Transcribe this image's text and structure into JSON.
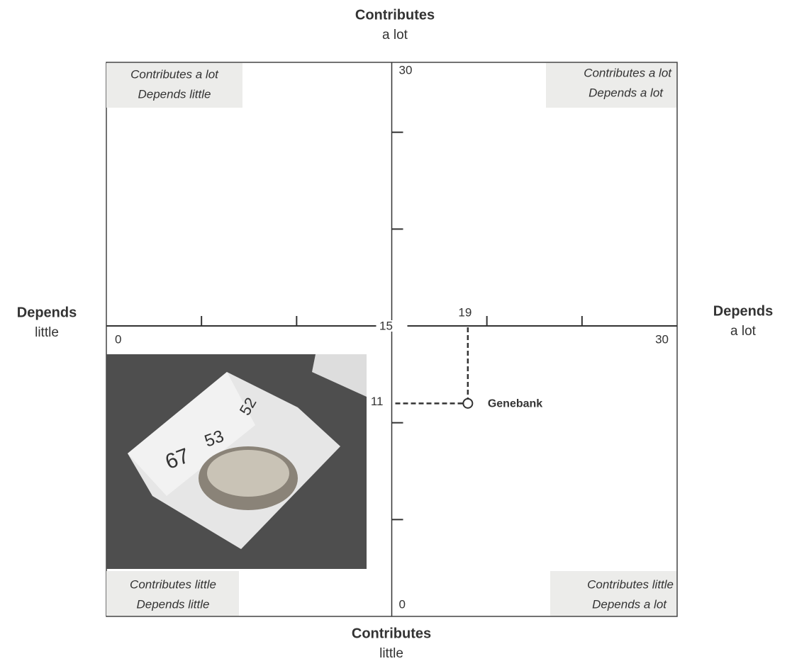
{
  "chart_data": {
    "type": "scatter",
    "top_label": {
      "bold": "Contributes",
      "normal": "a lot"
    },
    "bottom_label": {
      "bold": "Contributes",
      "normal": "little"
    },
    "left_label": {
      "bold": "Depends",
      "normal": "little"
    },
    "right_label": {
      "bold": "Depends",
      "normal": "a lot"
    },
    "quadrants": {
      "top_left": [
        "Contributes a lot",
        "Depends little"
      ],
      "top_right": [
        "Contributes a lot",
        "Depends a lot"
      ],
      "bottom_left": [
        "Contributes little",
        "Depends little"
      ],
      "bottom_right": [
        "Contributes little",
        "Depends a lot"
      ]
    },
    "xlim": [
      0,
      30
    ],
    "ylim": [
      0,
      30
    ],
    "xticks": [
      0,
      30
    ],
    "yticks": [
      0,
      30
    ],
    "minor_xticks": [
      5,
      10,
      20,
      25
    ],
    "minor_yticks": [
      5,
      10,
      20,
      25
    ],
    "center": 15,
    "series": [
      {
        "name": "Genebank",
        "color": "#333333",
        "x": [
          19
        ],
        "y": [
          11
        ]
      }
    ],
    "photo_labels": [
      "67",
      "53",
      "52"
    ]
  }
}
